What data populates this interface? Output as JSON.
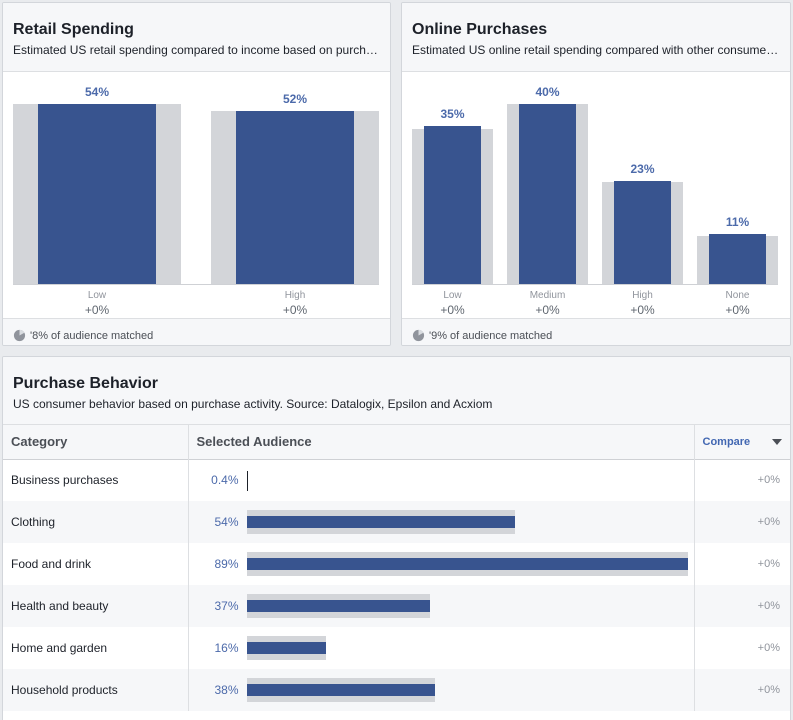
{
  "retail": {
    "title": "Retail Spending",
    "subtitle": "Estimated US retail spending compared to income based on purch…",
    "footer": "'8% of audience matched",
    "bars": [
      {
        "label": "Low",
        "pct_label": "54%",
        "value": 54,
        "compare": "+0%"
      },
      {
        "label": "High",
        "pct_label": "52%",
        "value": 52,
        "compare": "+0%"
      }
    ]
  },
  "online": {
    "title": "Online Purchases",
    "subtitle": "Estimated US online retail spending compared with other consume…",
    "footer": "'9% of audience matched",
    "bars": [
      {
        "label": "Low",
        "pct_label": "35%",
        "value": 35,
        "compare": "+0%"
      },
      {
        "label": "Medium",
        "pct_label": "40%",
        "value": 40,
        "compare": "+0%"
      },
      {
        "label": "High",
        "pct_label": "23%",
        "value": 23,
        "compare": "+0%"
      },
      {
        "label": "None",
        "pct_label": "11%",
        "value": 11,
        "compare": "+0%"
      }
    ]
  },
  "purchase": {
    "title": "Purchase Behavior",
    "subtitle": "US consumer behavior based on purchase activity. Source: Datalogix, Epsilon and Acxiom",
    "columns": {
      "category": "Category",
      "selected": "Selected Audience",
      "compare": "Compare"
    },
    "rows": [
      {
        "category": "Business purchases",
        "pct_label": "0.4%",
        "value": 0.4,
        "compare": "+0%"
      },
      {
        "category": "Clothing",
        "pct_label": "54%",
        "value": 54,
        "compare": "+0%"
      },
      {
        "category": "Food and drink",
        "pct_label": "89%",
        "value": 89,
        "compare": "+0%"
      },
      {
        "category": "Health and beauty",
        "pct_label": "37%",
        "value": 37,
        "compare": "+0%"
      },
      {
        "category": "Home and garden",
        "pct_label": "16%",
        "value": 16,
        "compare": "+0%"
      },
      {
        "category": "Household products",
        "pct_label": "38%",
        "value": 38,
        "compare": "+0%"
      }
    ]
  },
  "colors": {
    "bar": "#38548f",
    "bar_bg": "#d3d5d9",
    "pct_text": "#4c6aaa",
    "compare_link": "#4267b2"
  }
}
